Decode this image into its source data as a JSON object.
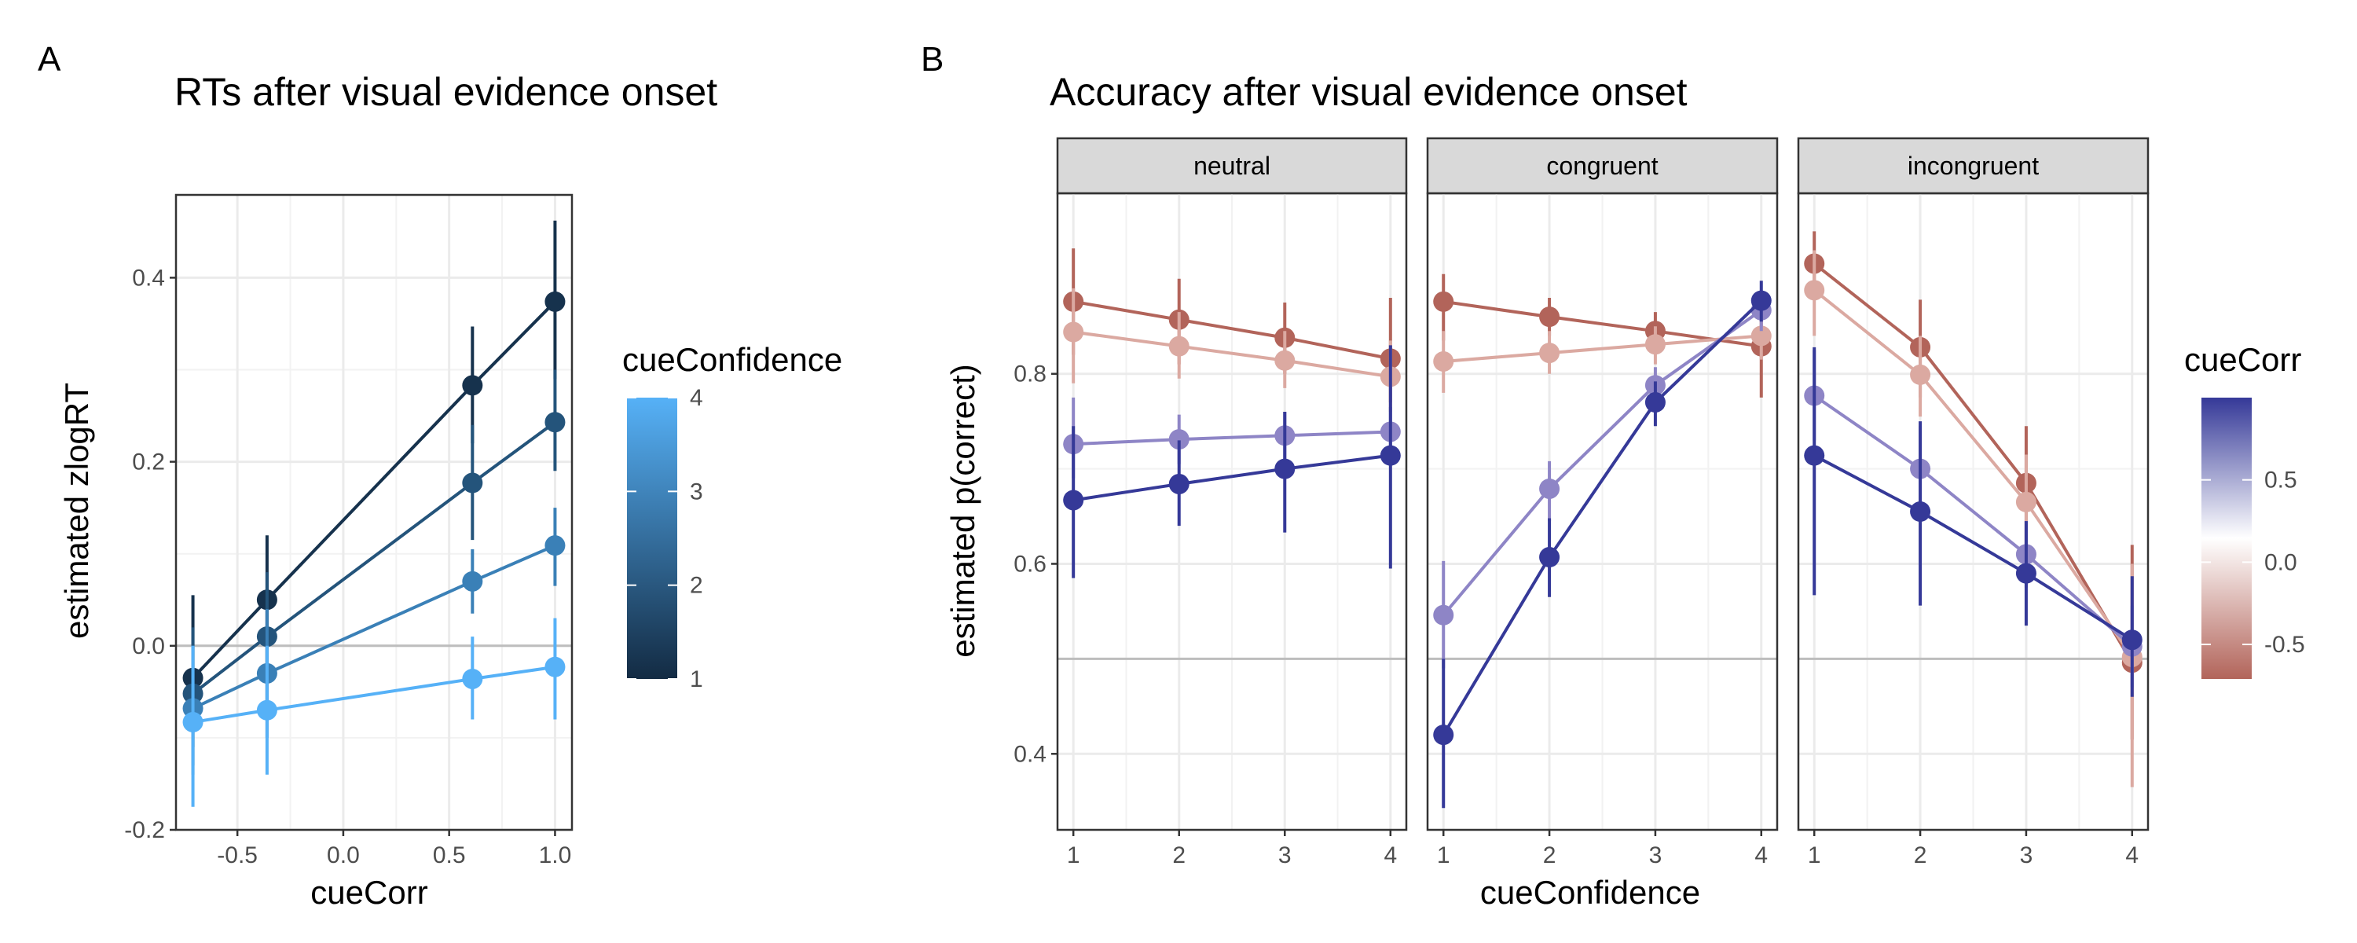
{
  "figure": {
    "panel_a_label": "A",
    "panel_b_label": "B"
  },
  "chart_data": [
    {
      "type": "line",
      "title": "RTs after visual evidence onset",
      "xlabel": "cueCorr",
      "ylabel": "estimated zlogRT",
      "xlim": [
        -0.79,
        1.08
      ],
      "ylim": [
        -0.2,
        0.49
      ],
      "xticks": [
        -0.5,
        0.0,
        0.5,
        1.0
      ],
      "xtick_labels": [
        "-0.5",
        "0.0",
        "0.5",
        "1.0"
      ],
      "yticks": [
        -0.2,
        0.0,
        0.2,
        0.4
      ],
      "ytick_labels": [
        "-0.2",
        "0.0",
        "0.2",
        "0.4"
      ],
      "reference_line_y": 0.0,
      "grid": true,
      "x": [
        -0.71,
        -0.36,
        0.61,
        1.0
      ],
      "legend": {
        "title": "cueConfidence",
        "type": "colorbar",
        "placement": "right",
        "range": [
          1,
          4
        ],
        "ticks": [
          1,
          2,
          3,
          4
        ],
        "tick_labels": [
          "1",
          "2",
          "3",
          "4"
        ],
        "colors": [
          "#132b43",
          "#56b1f7"
        ]
      },
      "series": [
        {
          "level": 1,
          "color": "#16324d",
          "values": [
            -0.035,
            0.05,
            0.283,
            0.374
          ],
          "ci_low": [
            -0.11,
            -0.02,
            0.22,
            0.29
          ],
          "ci_high": [
            0.055,
            0.12,
            0.347,
            0.462
          ]
        },
        {
          "level": 2,
          "color": "#24547b",
          "values": [
            -0.052,
            0.01,
            0.177,
            0.243
          ],
          "ci_low": [
            -0.13,
            -0.06,
            0.115,
            0.19
          ],
          "ci_high": [
            0.02,
            0.08,
            0.24,
            0.3
          ]
        },
        {
          "level": 3,
          "color": "#3a80b7",
          "values": [
            -0.068,
            -0.03,
            0.07,
            0.109
          ],
          "ci_low": [
            -0.14,
            -0.1,
            0.035,
            0.065
          ],
          "ci_high": [
            0.0,
            0.04,
            0.105,
            0.15
          ]
        },
        {
          "level": 4,
          "color": "#56b1f7",
          "values": [
            -0.083,
            -0.07,
            -0.036,
            -0.023
          ],
          "ci_low": [
            -0.175,
            -0.14,
            -0.08,
            -0.08
          ],
          "ci_high": [
            0.0,
            0.0,
            0.01,
            0.03
          ]
        }
      ]
    },
    {
      "type": "line",
      "title": "Accuracy after visual evidence onset",
      "xlabel": "cueConfidence",
      "ylabel": "estimated p(correct)",
      "xlim": [
        0.85,
        4.15
      ],
      "ylim": [
        0.32,
        0.99
      ],
      "xticks": [
        1,
        2,
        3,
        4
      ],
      "xtick_labels": [
        "1",
        "2",
        "3",
        "4"
      ],
      "yticks": [
        0.4,
        0.6,
        0.8
      ],
      "ytick_labels": [
        "0.4",
        "0.6",
        "0.8"
      ],
      "reference_line_y": 0.5,
      "grid": true,
      "x": [
        1,
        2,
        3,
        4
      ],
      "legend": {
        "title": "cueCorr",
        "type": "colorbar",
        "placement": "right",
        "range": [
          -0.71,
          1.0
        ],
        "ticks": [
          -0.5,
          0.0,
          0.5
        ],
        "tick_labels": [
          "-0.5",
          "0.0",
          "0.5"
        ],
        "colors": [
          "#b2645a",
          "#ffffff",
          "#353998"
        ]
      },
      "facets": [
        {
          "label": "neutral",
          "series": [
            {
              "cueCorr": -0.71,
              "color": "#b2645a",
              "values": [
                0.876,
                0.857,
                0.838,
                0.816
              ],
              "ci_low": [
                0.82,
                0.81,
                0.8,
                0.77
              ],
              "ci_high": [
                0.932,
                0.9,
                0.875,
                0.88
              ]
            },
            {
              "cueCorr": -0.36,
              "color": "#dba9a1",
              "values": [
                0.844,
                0.829,
                0.814,
                0.797
              ],
              "ci_low": [
                0.79,
                0.795,
                0.785,
                0.76
              ],
              "ci_high": [
                0.89,
                0.865,
                0.845,
                0.835
              ]
            },
            {
              "cueCorr": 0.61,
              "color": "#8e85c6",
              "values": [
                0.726,
                0.731,
                0.735,
                0.739
              ],
              "ci_low": [
                0.69,
                0.705,
                0.71,
                0.715
              ],
              "ci_high": [
                0.775,
                0.757,
                0.76,
                0.765
              ]
            },
            {
              "cueCorr": 1.0,
              "color": "#353998",
              "values": [
                0.667,
                0.684,
                0.7,
                0.714
              ],
              "ci_low": [
                0.585,
                0.64,
                0.633,
                0.595
              ],
              "ci_high": [
                0.745,
                0.73,
                0.76,
                0.83
              ]
            }
          ]
        },
        {
          "label": "congruent",
          "series": [
            {
              "cueCorr": -0.71,
              "color": "#b2645a",
              "values": [
                0.876,
                0.86,
                0.845,
                0.829
              ],
              "ci_low": [
                0.835,
                0.84,
                0.825,
                0.775
              ],
              "ci_high": [
                0.905,
                0.88,
                0.865,
                0.875
              ]
            },
            {
              "cueCorr": -0.36,
              "color": "#dba9a1",
              "values": [
                0.813,
                0.822,
                0.831,
                0.84
              ],
              "ci_low": [
                0.78,
                0.8,
                0.81,
                0.815
              ],
              "ci_high": [
                0.845,
                0.845,
                0.85,
                0.86
              ]
            },
            {
              "cueCorr": 0.61,
              "color": "#8e85c6",
              "values": [
                0.546,
                0.679,
                0.788,
                0.867
              ],
              "ci_low": [
                0.49,
                0.645,
                0.765,
                0.845
              ],
              "ci_high": [
                0.603,
                0.708,
                0.807,
                0.885
              ]
            },
            {
              "cueCorr": 1.0,
              "color": "#353998",
              "values": [
                0.42,
                0.607,
                0.77,
                0.877
              ],
              "ci_low": [
                0.343,
                0.565,
                0.745,
                0.855
              ],
              "ci_high": [
                0.5,
                0.648,
                0.792,
                0.898
              ]
            }
          ]
        },
        {
          "label": "incongruent",
          "series": [
            {
              "cueCorr": -0.71,
              "color": "#b2645a",
              "values": [
                0.916,
                0.828,
                0.685,
                0.496
              ],
              "ci_low": [
                0.88,
                0.775,
                0.62,
                0.415
              ],
              "ci_high": [
                0.95,
                0.878,
                0.745,
                0.62
              ]
            },
            {
              "cueCorr": -0.36,
              "color": "#dba9a1",
              "values": [
                0.888,
                0.799,
                0.665,
                0.502
              ],
              "ci_low": [
                0.84,
                0.755,
                0.61,
                0.365
              ],
              "ci_high": [
                0.93,
                0.84,
                0.715,
                0.6
              ]
            },
            {
              "cueCorr": 0.61,
              "color": "#8e85c6",
              "values": [
                0.777,
                0.7,
                0.61,
                0.513
              ],
              "ci_low": [
                0.73,
                0.655,
                0.575,
                0.47
              ],
              "ci_high": [
                0.825,
                0.745,
                0.645,
                0.556
              ]
            },
            {
              "cueCorr": 1.0,
              "color": "#353998",
              "values": [
                0.714,
                0.655,
                0.59,
                0.52
              ],
              "ci_low": [
                0.567,
                0.556,
                0.535,
                0.46
              ],
              "ci_high": [
                0.828,
                0.75,
                0.645,
                0.587
              ]
            }
          ]
        }
      ]
    }
  ]
}
